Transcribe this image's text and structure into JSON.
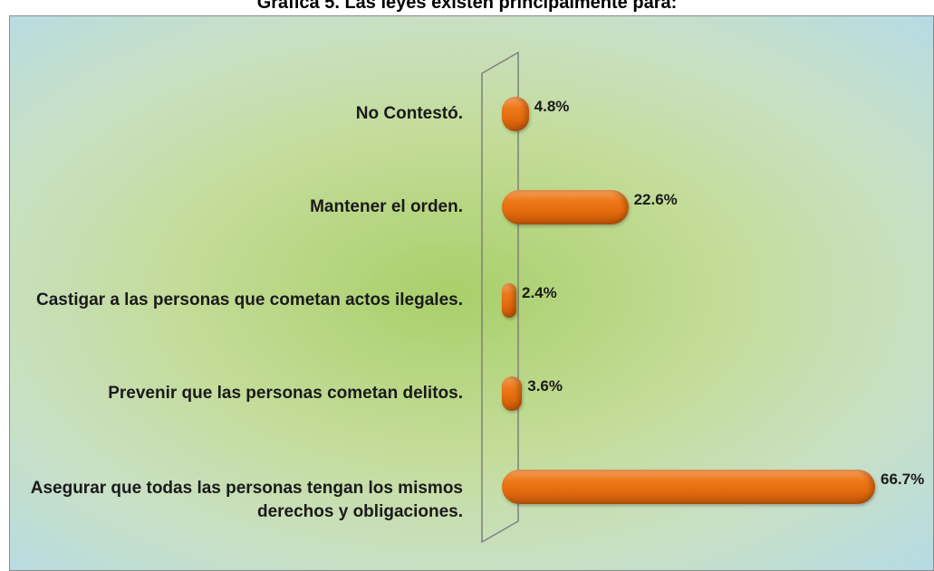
{
  "chart_data": {
    "type": "bar",
    "orientation": "horizontal",
    "title": "Gráfica 5. Las leyes existen principalmente para:",
    "categories": [
      "No Contestó.",
      "Mantener el orden.",
      "Castigar a las personas que cometan actos ilegales.",
      "Prevenir que las personas cometan delitos.",
      "Asegurar que todas las personas tengan los mismos derechos y obligaciones."
    ],
    "values": [
      4.8,
      22.6,
      2.4,
      3.6,
      66.7
    ],
    "value_labels": [
      "4.8%",
      "22.6%",
      "2.4%",
      "3.6%",
      "66.7%"
    ],
    "color": "#e8720f"
  }
}
